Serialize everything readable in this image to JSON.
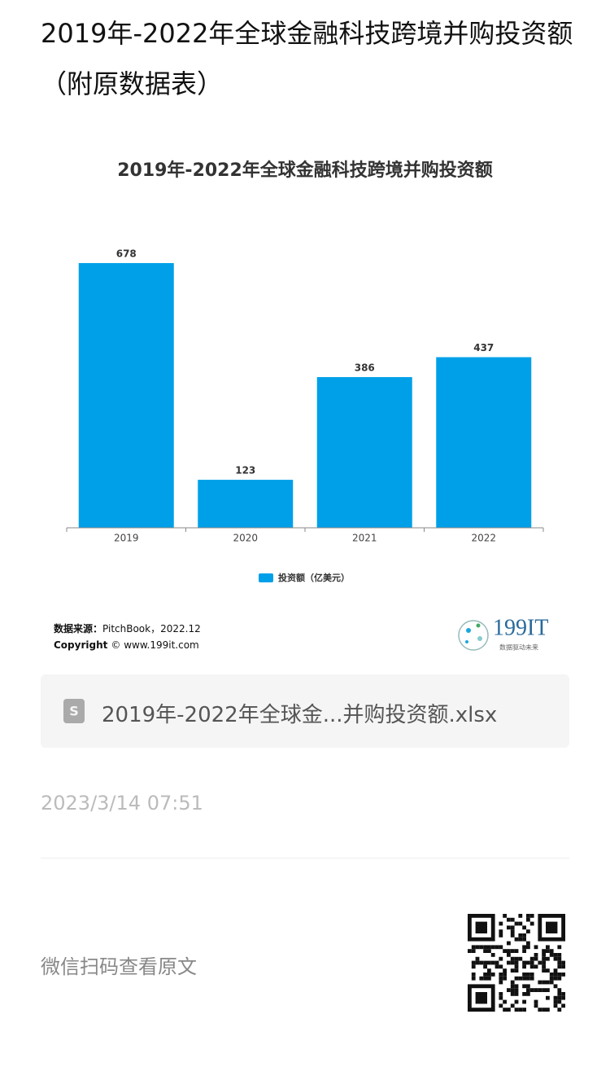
{
  "page": {
    "title": "2019年-2022年全球金融科技跨境并购投资额（附原数据表）",
    "source_label": "数据来源：",
    "source": "PitchBook，2022.12",
    "copyright_label": "Copyright",
    "copyright": "© www.199it.com",
    "logo": "199IT",
    "logo_tagline": "数据驱动未来",
    "attachment": "2019年-2022年全球金...并购投资额.xlsx",
    "date": "2023/3/14 07:51",
    "qr_hint": "微信扫码查看原文"
  },
  "chart_data": {
    "type": "bar",
    "title": "2019年-2022年全球金融科技跨境并购投资额",
    "categories": [
      "2019",
      "2020",
      "2021",
      "2022"
    ],
    "series": [
      {
        "name": "投资额（亿美元）",
        "color": "#00a0e9",
        "values": [
          678,
          123,
          386,
          437
        ]
      }
    ],
    "legend": "bottom",
    "grid": false
  }
}
